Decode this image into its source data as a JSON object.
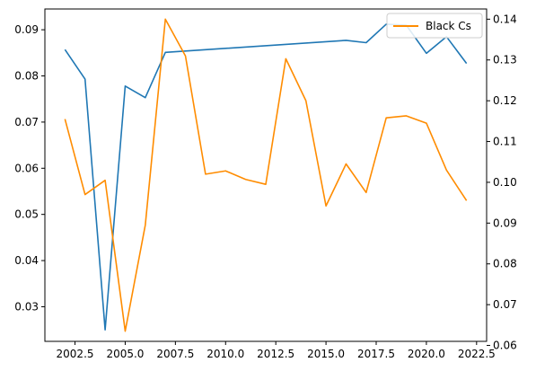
{
  "chart_data": {
    "type": "line",
    "title": "",
    "xlabel": "",
    "ylabel_left": "",
    "ylabel_right": "",
    "xlim": [
      2001.0,
      2023.0
    ],
    "ylim_left": [
      0.0225,
      0.0945
    ],
    "ylim_right": [
      0.061,
      0.1425
    ],
    "x_ticks": [
      2002.5,
      2005.0,
      2007.5,
      2010.0,
      2012.5,
      2015.0,
      2017.5,
      2020.0,
      2022.5
    ],
    "x_tick_labels": [
      "2002.5",
      "2005.0",
      "2007.5",
      "2010.0",
      "2012.5",
      "2015.0",
      "2017.5",
      "2020.0",
      "2022.5"
    ],
    "y_left_ticks": [
      0.03,
      0.04,
      0.05,
      0.06,
      0.07,
      0.08,
      0.09
    ],
    "y_left_tick_labels": [
      "0.03",
      "0.04",
      "0.05",
      "0.06",
      "0.07",
      "0.08",
      "0.09"
    ],
    "y_right_ticks": [
      0.06,
      0.07,
      0.08,
      0.09,
      0.1,
      0.11,
      0.12,
      0.13,
      0.14
    ],
    "y_right_tick_labels": [
      "0.06",
      "0.07",
      "0.08",
      "0.09",
      "0.10",
      "0.11",
      "0.12",
      "0.13",
      "0.14"
    ],
    "grid": false,
    "legend_position": "top-right",
    "series": [
      {
        "name": "",
        "axis": "left",
        "color": "#1f77b4",
        "x": [
          2002,
          2003,
          2004,
          2005,
          2006,
          2007,
          2016,
          2017,
          2018,
          2019,
          2020,
          2021,
          2022
        ],
        "y": [
          0.0857,
          0.0793,
          0.025,
          0.0778,
          0.0753,
          0.0851,
          0.0877,
          0.0872,
          0.0912,
          0.091,
          0.0849,
          0.0885,
          0.0827
        ]
      },
      {
        "name": "Black Cs",
        "axis": "right",
        "color": "#ff8c00",
        "x": [
          2002,
          2003,
          2004,
          2005,
          2006,
          2007,
          2008,
          2009,
          2010,
          2011,
          2012,
          2013,
          2014,
          2015,
          2016,
          2017,
          2018,
          2019,
          2020,
          2021,
          2022
        ],
        "y": [
          0.1155,
          0.097,
          0.1005,
          0.0635,
          0.0895,
          0.14,
          0.131,
          0.102,
          0.1028,
          0.1007,
          0.0995,
          0.1303,
          0.12,
          0.0942,
          0.1045,
          0.0975,
          0.1158,
          0.1163,
          0.1145,
          0.103,
          0.0955
        ]
      }
    ]
  }
}
